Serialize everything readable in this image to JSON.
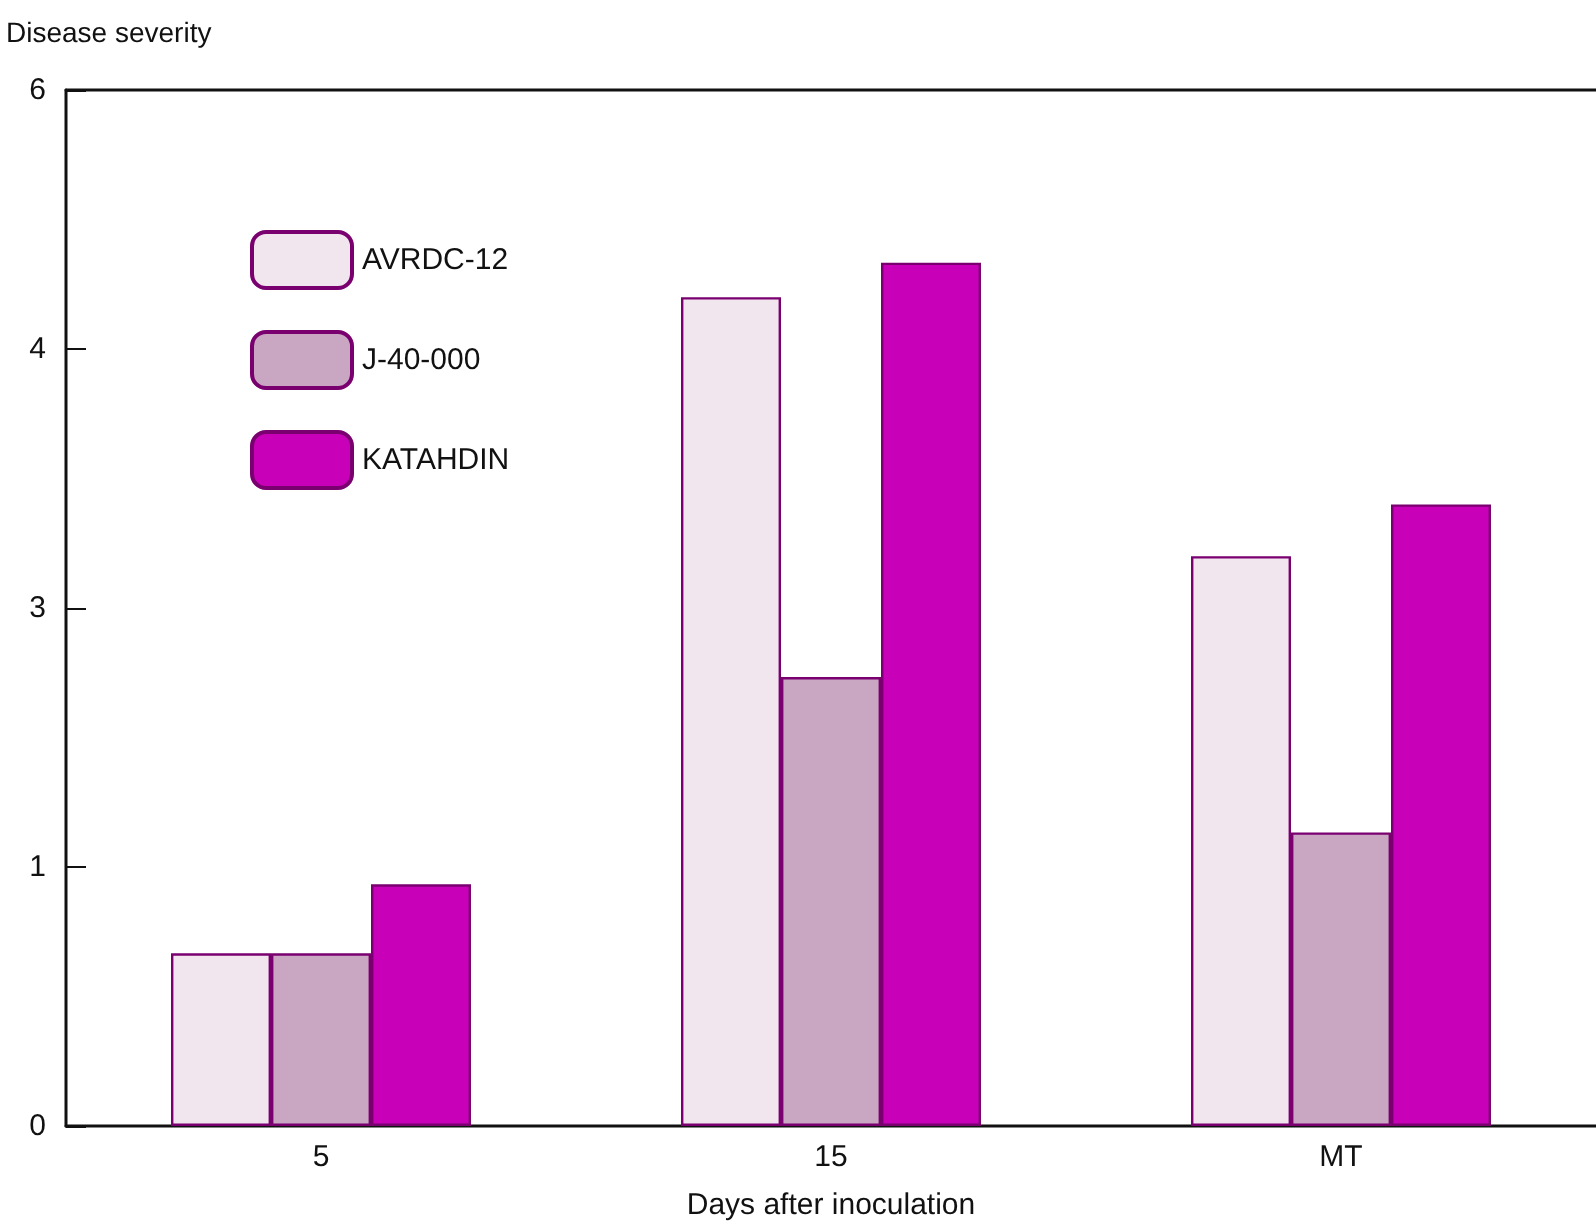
{
  "chart_data": {
    "type": "bar",
    "xlabel": "Days after inoculation",
    "ylabel": "Disease severity",
    "categories": [
      "5",
      "15",
      "MT"
    ],
    "series": [
      {
        "name": "AVRDC-12",
        "color": "#f2e6ee",
        "values": [
          1.0,
          4.8,
          3.3
        ]
      },
      {
        "name": "J-40-000",
        "color": "#c9a6c2",
        "values": [
          1.0,
          2.6,
          1.7
        ]
      },
      {
        "name": "KATAHDIN",
        "color": "#c800b8",
        "values": [
          1.4,
          5.0,
          3.6
        ]
      }
    ],
    "ylim": [
      0,
      6
    ],
    "yticks": [
      0,
      {
        "value": 1.5,
        "label": "1"
      },
      3,
      {
        "value": 4.5,
        "label": "4"
      },
      6
    ],
    "grid": false,
    "legend": "top left"
  }
}
